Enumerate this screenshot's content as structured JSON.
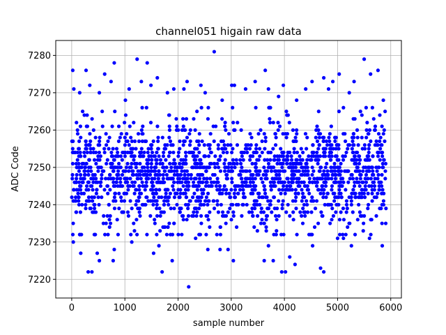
{
  "chart_data": {
    "type": "scatter",
    "title": "channel051 higain raw data",
    "xlabel": "sample number",
    "ylabel": "ADC Code",
    "xlim": [
      -300,
      6200
    ],
    "ylim": [
      7215,
      7284
    ],
    "x_ticks": [
      0,
      1000,
      2000,
      3000,
      4000,
      5000,
      6000
    ],
    "y_ticks": [
      7220,
      7230,
      7240,
      7250,
      7260,
      7270,
      7280
    ],
    "grid": true,
    "marker_color": "#0000ff",
    "series": [
      {
        "points": [
          [
            20,
            7276
          ],
          [
            40,
            7271
          ],
          [
            150,
            7270
          ],
          [
            270,
            7276
          ],
          [
            340,
            7272
          ],
          [
            520,
            7270
          ],
          [
            620,
            7275
          ],
          [
            740,
            7273
          ],
          [
            800,
            7278
          ],
          [
            1010,
            7268
          ],
          [
            1080,
            7271
          ],
          [
            1230,
            7279
          ],
          [
            1310,
            7273
          ],
          [
            1420,
            7278
          ],
          [
            1490,
            7272
          ],
          [
            1610,
            7274
          ],
          [
            1800,
            7270
          ],
          [
            1920,
            7271
          ],
          [
            2110,
            7271
          ],
          [
            2170,
            7273
          ],
          [
            2430,
            7272
          ],
          [
            2510,
            7270
          ],
          [
            2680,
            7281
          ],
          [
            2830,
            7268
          ],
          [
            3010,
            7272
          ],
          [
            3060,
            7272
          ],
          [
            3270,
            7271
          ],
          [
            3450,
            7273
          ],
          [
            3640,
            7276
          ],
          [
            3700,
            7271
          ],
          [
            3890,
            7269
          ],
          [
            3980,
            7272
          ],
          [
            4230,
            7268
          ],
          [
            4400,
            7271
          ],
          [
            4520,
            7273
          ],
          [
            4740,
            7274
          ],
          [
            4830,
            7271
          ],
          [
            4910,
            7273
          ],
          [
            5030,
            7275
          ],
          [
            5220,
            7270
          ],
          [
            5310,
            7273
          ],
          [
            5500,
            7279
          ],
          [
            5620,
            7275
          ],
          [
            5760,
            7276
          ],
          [
            5860,
            7268
          ],
          [
            30,
            7230
          ],
          [
            170,
            7227
          ],
          [
            310,
            7222
          ],
          [
            380,
            7222
          ],
          [
            480,
            7227
          ],
          [
            520,
            7225
          ],
          [
            780,
            7225
          ],
          [
            800,
            7228
          ],
          [
            1130,
            7230
          ],
          [
            1540,
            7227
          ],
          [
            1640,
            7229
          ],
          [
            1700,
            7222
          ],
          [
            1890,
            7225
          ],
          [
            2200,
            7218
          ],
          [
            2330,
            7231
          ],
          [
            2560,
            7228
          ],
          [
            2790,
            7228
          ],
          [
            2940,
            7228
          ],
          [
            3040,
            7225
          ],
          [
            3620,
            7225
          ],
          [
            3700,
            7229
          ],
          [
            3790,
            7225
          ],
          [
            3950,
            7222
          ],
          [
            4020,
            7222
          ],
          [
            4100,
            7226
          ],
          [
            4200,
            7224
          ],
          [
            4530,
            7229
          ],
          [
            4680,
            7223
          ],
          [
            4740,
            7222
          ],
          [
            5000,
            7231
          ],
          [
            5110,
            7231
          ],
          [
            5260,
            7229
          ],
          [
            5600,
            7231
          ],
          [
            5840,
            7229
          ]
        ]
      }
    ],
    "bulk": {
      "x_range": [
        0,
        5920
      ],
      "count": 1900,
      "center": 7248,
      "spread_sd": 7.2,
      "clip": [
        7232,
        7266
      ],
      "quantization": 1
    }
  }
}
